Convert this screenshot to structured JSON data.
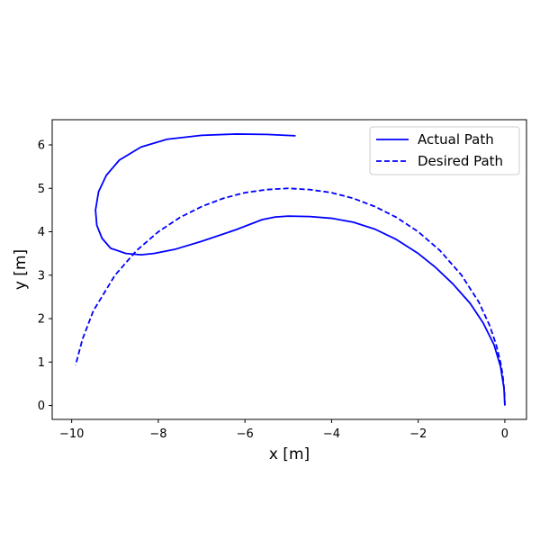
{
  "chart_data": {
    "type": "line",
    "title": "",
    "xlabel": "x [m]",
    "ylabel": "y [m]",
    "xlim": [
      -10.45,
      0.5
    ],
    "ylim": [
      -0.32,
      6.58
    ],
    "xticks": [
      -10,
      -8,
      -6,
      -4,
      -2,
      0
    ],
    "xtick_labels": [
      "−10",
      "−8",
      "−6",
      "−4",
      "−2",
      "0"
    ],
    "yticks": [
      0,
      1,
      2,
      3,
      4,
      5,
      6
    ],
    "ytick_labels": [
      "0",
      "1",
      "2",
      "3",
      "4",
      "5",
      "6"
    ],
    "grid": false,
    "legend_position": "top-right",
    "series": [
      {
        "name": "Actual Path",
        "style": "solid",
        "color": "#0000ff",
        "x": [
          0.0,
          -0.02,
          -0.1,
          -0.25,
          -0.5,
          -0.8,
          -1.2,
          -1.6,
          -2.0,
          -2.5,
          -3.0,
          -3.5,
          -4.0,
          -4.5,
          -5.0,
          -5.3,
          -5.6,
          -6.2,
          -7.0,
          -7.6,
          -8.1,
          -8.4,
          -8.75,
          -9.1,
          -9.3,
          -9.42,
          -9.45,
          -9.38,
          -9.2,
          -8.9,
          -8.4,
          -7.8,
          -7.0,
          -6.2,
          -5.5,
          -4.83
        ],
        "y": [
          0.0,
          0.4,
          0.9,
          1.4,
          1.9,
          2.35,
          2.8,
          3.18,
          3.5,
          3.82,
          4.06,
          4.22,
          4.31,
          4.35,
          4.36,
          4.34,
          4.28,
          4.05,
          3.78,
          3.6,
          3.5,
          3.47,
          3.5,
          3.62,
          3.85,
          4.15,
          4.5,
          4.92,
          5.3,
          5.65,
          5.95,
          6.13,
          6.22,
          6.25,
          6.24,
          6.21
        ]
      },
      {
        "name": "Desired Path",
        "style": "dashed",
        "color": "#0000ff",
        "center": [
          -5,
          0
        ],
        "radius": 5,
        "x": [
          0.0,
          -0.01,
          -0.05,
          -0.1,
          -0.2,
          -0.35,
          -0.6,
          -1.0,
          -1.5,
          -2.0,
          -2.5,
          -3.0,
          -3.5,
          -4.0,
          -4.5,
          -5.0,
          -5.5,
          -6.0,
          -6.5,
          -7.0,
          -7.5,
          -8.0,
          -8.5,
          -9.0,
          -9.5,
          -9.75,
          -9.91
        ],
        "y": [
          0.0,
          0.32,
          0.71,
          0.99,
          1.4,
          1.84,
          2.38,
          3.0,
          3.57,
          4.0,
          4.33,
          4.58,
          4.77,
          4.9,
          4.97,
          5.0,
          4.97,
          4.9,
          4.77,
          4.58,
          4.33,
          4.0,
          3.57,
          3.0,
          2.18,
          1.53,
          0.93
        ]
      }
    ]
  }
}
